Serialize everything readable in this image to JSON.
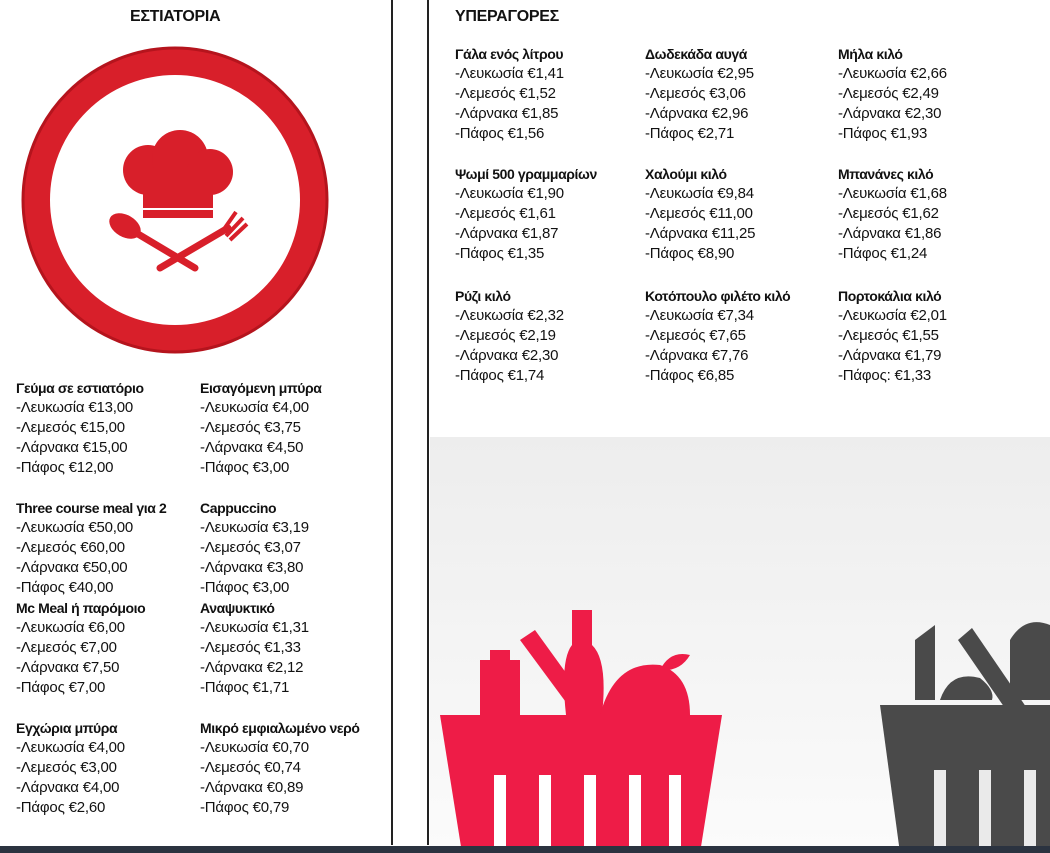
{
  "restaurants": {
    "title": "ΕΣΤΙΑΤΟΡΙΑ",
    "items": [
      {
        "title": "Γεύμα σε εστιατόριο",
        "lines": [
          "-Λευκωσία €13,00",
          "-Λεμεσός €15,00",
          "-Λάρνακα €15,00",
          "-Πάφος €12,00"
        ]
      },
      {
        "title": "Εισαγόμενη μπύρα",
        "lines": [
          "-Λευκωσία €4,00",
          "-Λεμεσός €3,75",
          "-Λάρνακα €4,50",
          "-Πάφος €3,00"
        ]
      },
      {
        "title": "Three course meal για 2",
        "lines": [
          "-Λευκωσία €50,00",
          "-Λεμεσός €60,00",
          "-Λάρνακα €50,00",
          "-Πάφος €40,00"
        ]
      },
      {
        "title": "Cappuccino",
        "lines": [
          "-Λευκωσία €3,19",
          "-Λεμεσός €3,07",
          "-Λάρνακα €3,80",
          "-Πάφος €3,00"
        ]
      },
      {
        "title": "Mc Meal ή παρόμοιο",
        "lines": [
          "-Λευκωσία €6,00",
          "-Λεμεσός €7,00",
          "-Λάρνακα €7,50",
          "-Πάφος €7,00"
        ]
      },
      {
        "title": "Αναψυκτικό",
        "lines": [
          "-Λευκωσία €1,31",
          "-Λεμεσός €1,33",
          "-Λάρνακα €2,12",
          "-Πάφος €1,71"
        ]
      },
      {
        "title": "Εγχώρια μπύρα",
        "lines": [
          "-Λευκωσία €4,00",
          "-Λεμεσός €3,00",
          "-Λάρνακα €4,00",
          "-Πάφος €2,60"
        ]
      },
      {
        "title": "Μικρό εμφιαλωμένο νερό",
        "lines": [
          "-Λευκωσία €0,70",
          "-Λεμεσός €0,74",
          "-Λάρνακα €0,89",
          "-Πάφος €0,79"
        ]
      }
    ]
  },
  "supermarkets": {
    "title": "ΥΠΕΡΑΓΟΡΕΣ",
    "items": [
      {
        "title": "Γάλα ενός λίτρου",
        "lines": [
          "-Λευκωσία €1,41",
          "-Λεμεσός €1,52",
          "-Λάρνακα €1,85",
          "-Πάφος €1,56"
        ]
      },
      {
        "title": "Δωδεκάδα αυγά",
        "lines": [
          "-Λευκωσία €2,95",
          "-Λεμεσός €3,06",
          "-Λάρνακα €2,96",
          "-Πάφος €2,71"
        ]
      },
      {
        "title": "Μήλα κιλό",
        "lines": [
          "-Λευκωσία €2,66",
          "-Λεμεσός €2,49",
          "-Λάρνακα €2,30",
          "-Πάφος €1,93"
        ]
      },
      {
        "title": "Ψωμί 500 γραμμαρίων",
        "lines": [
          "-Λευκωσία €1,90",
          "-Λεμεσός €1,61",
          "-Λάρνακα €1,87",
          "-Πάφος €1,35"
        ]
      },
      {
        "title": "Χαλούμι κιλό",
        "lines": [
          "-Λευκωσία €9,84",
          "-Λεμεσός €11,00",
          "-Λάρνακα €11,25",
          "-Πάφος €8,90"
        ]
      },
      {
        "title": "Μπανάνες κιλό",
        "lines": [
          "-Λευκωσία €1,68",
          "-Λεμεσός €1,62",
          "-Λάρνακα €1,86",
          "-Πάφος €1,24"
        ]
      },
      {
        "title": "Ρύζι κιλό",
        "lines": [
          "-Λευκωσία €2,32",
          "-Λεμεσός €2,19",
          "-Λάρνακα €2,30",
          "-Πάφος €1,74"
        ]
      },
      {
        "title": "Κοτόπουλο φιλέτο κιλό",
        "lines": [
          "-Λευκωσία €7,34",
          "-Λεμεσός €7,65",
          "-Λάρνακα €7,76",
          "-Πάφος €6,85"
        ]
      },
      {
        "title": "Πορτοκάλια κιλό",
        "lines": [
          "-Λευκωσία €2,01",
          "-Λεμεσός €1,55",
          "-Λάρνακα €1,79",
          "-Πάφος: €1,33"
        ]
      }
    ]
  }
}
